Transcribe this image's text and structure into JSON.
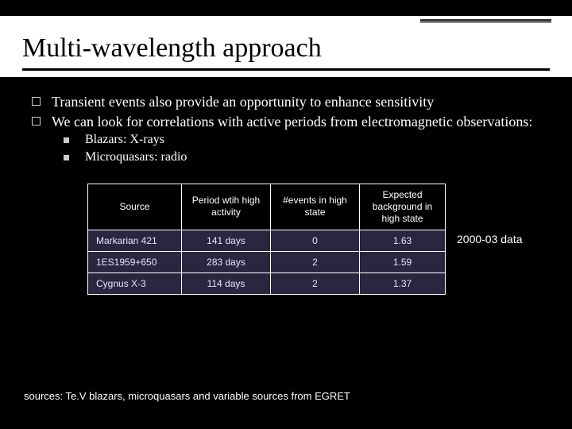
{
  "title": "Multi-wavelength approach",
  "bullets_l1": [
    "Transient events also provide an opportunity to enhance sensitivity",
    "We can look for correlations with active periods from electromagnetic observations:"
  ],
  "bullets_l2": [
    "Blazars: X-rays",
    "Microquasars: radio"
  ],
  "table": {
    "headers": [
      "Source",
      "Period wtih high activity",
      "#events in high state",
      "Expected background in high state"
    ],
    "rows": [
      [
        "Markarian 421",
        "141 days",
        "0",
        "1.63"
      ],
      [
        "1ES1959+650",
        "283 days",
        "2",
        "1.59"
      ],
      [
        "Cygnus X-3",
        "114 days",
        "2",
        "1.37"
      ]
    ],
    "header_bg": "#000000",
    "row_bg": "#2a2640",
    "border_color": "#ffffff",
    "text_color": "#ffffff"
  },
  "side_note": "2000-03 data",
  "footnote": "sources: Te.V blazars, microquasars and variable sources from EGRET",
  "colors": {
    "slide_bg": "#000000",
    "header_bg": "#ffffff",
    "title_color": "#000000",
    "bullet_outline": "#cccccc"
  }
}
